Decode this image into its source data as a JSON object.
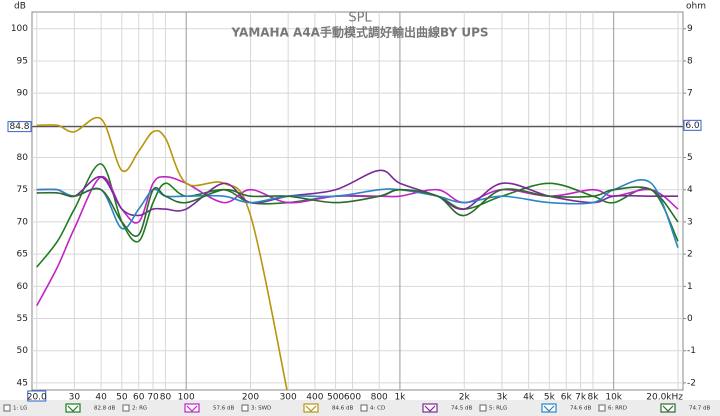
{
  "chart_data": {
    "type": "line",
    "title": "SPL",
    "subtitle": "YAMAHA A4A手動模式調好輸出曲線BY UPS",
    "y_label": "dB",
    "y2_label": "ohm",
    "log_x": true,
    "grid": true,
    "legend": "bottom",
    "xlim": [
      19,
      21100
    ],
    "ylim": [
      43.9,
      102.6
    ],
    "y2lim": [
      -2.22,
      9.52
    ],
    "xticks": [
      {
        "value": 20,
        "label": "20.0"
      },
      30,
      40,
      50,
      60,
      70,
      80,
      100,
      200,
      300,
      400,
      500,
      600,
      800,
      {
        "value": 1000,
        "label": "1k"
      },
      {
        "value": 2000,
        "label": "2k"
      },
      {
        "value": 3000,
        "label": "3k"
      },
      {
        "value": 4000,
        "label": "4k"
      },
      {
        "value": 5000,
        "label": "5k"
      },
      {
        "value": 6000,
        "label": "6k"
      },
      {
        "value": 7000,
        "label": "7k"
      },
      {
        "value": 8000,
        "label": "8k"
      },
      {
        "value": 10000,
        "label": "10k"
      },
      {
        "value": 20000,
        "label": "20.0kHz"
      }
    ],
    "yticks": [
      45,
      50,
      55,
      60,
      65,
      70,
      75,
      80,
      85,
      90,
      95,
      100
    ],
    "y2ticks": [
      -2,
      -1,
      0,
      1,
      2,
      3,
      4,
      5,
      6,
      7,
      8,
      9
    ],
    "cursor": {
      "value": 84.8,
      "label": "84.8"
    },
    "cursor_y2": {
      "value": 6,
      "label": "6.0"
    },
    "x": [
      20,
      25,
      30,
      40,
      50,
      60,
      70,
      80,
      100,
      150,
      200,
      300,
      500,
      800,
      1000,
      1500,
      2000,
      3000,
      5000,
      8000,
      10000,
      15000,
      20000
    ],
    "series": [
      {
        "name": "1: LG",
        "color": "#1e7d1e",
        "legend_value": "82.8 dB",
        "values": [
          63,
          67,
          72,
          79,
          70,
          67,
          73,
          76,
          74,
          75,
          73,
          73,
          74,
          74,
          75,
          74,
          72,
          74,
          76,
          74,
          73,
          75,
          67
        ]
      },
      {
        "name": "2: RG",
        "color": "#c024c8",
        "legend_value": "57.6 dB",
        "values": [
          57,
          63,
          69,
          77,
          72,
          70,
          76,
          77,
          76,
          73,
          75,
          73,
          74,
          74,
          74,
          75,
          73,
          75,
          74,
          75,
          74,
          75,
          72
        ]
      },
      {
        "name": "3: SWD",
        "color": "#b8960c",
        "legend_value": "84.6 dB",
        "values": [
          85,
          85,
          84,
          86,
          78,
          81,
          84,
          83,
          76,
          76,
          71,
          43,
          null,
          null,
          null,
          null,
          null,
          null,
          null,
          null,
          null,
          null,
          null
        ]
      },
      {
        "name": "4: CD",
        "color": "#7a2a9a",
        "legend_value": "74.5 dB",
        "values": [
          75,
          75,
          74,
          77,
          72,
          71,
          72,
          72,
          72,
          76,
          73,
          74,
          75,
          78,
          76,
          74,
          72,
          76,
          74,
          73,
          74,
          74,
          74
        ]
      },
      {
        "name": "5: RLG",
        "color": "#2a86c4",
        "legend_value": "74.6 dB",
        "values": [
          75,
          75,
          74,
          75,
          69,
          72,
          75,
          74,
          74,
          74,
          73,
          74,
          74,
          75,
          75,
          74,
          73,
          74,
          73,
          73,
          75,
          76,
          66
        ]
      },
      {
        "name": "6: RRD",
        "color": "#2d6a2d",
        "legend_value": "74.7 dB",
        "values": [
          74.5,
          74.5,
          74,
          75,
          70,
          68,
          75,
          74,
          73,
          75,
          74,
          74,
          73,
          74,
          75,
          74,
          71,
          75,
          74,
          74,
          75,
          75,
          70
        ]
      }
    ]
  }
}
